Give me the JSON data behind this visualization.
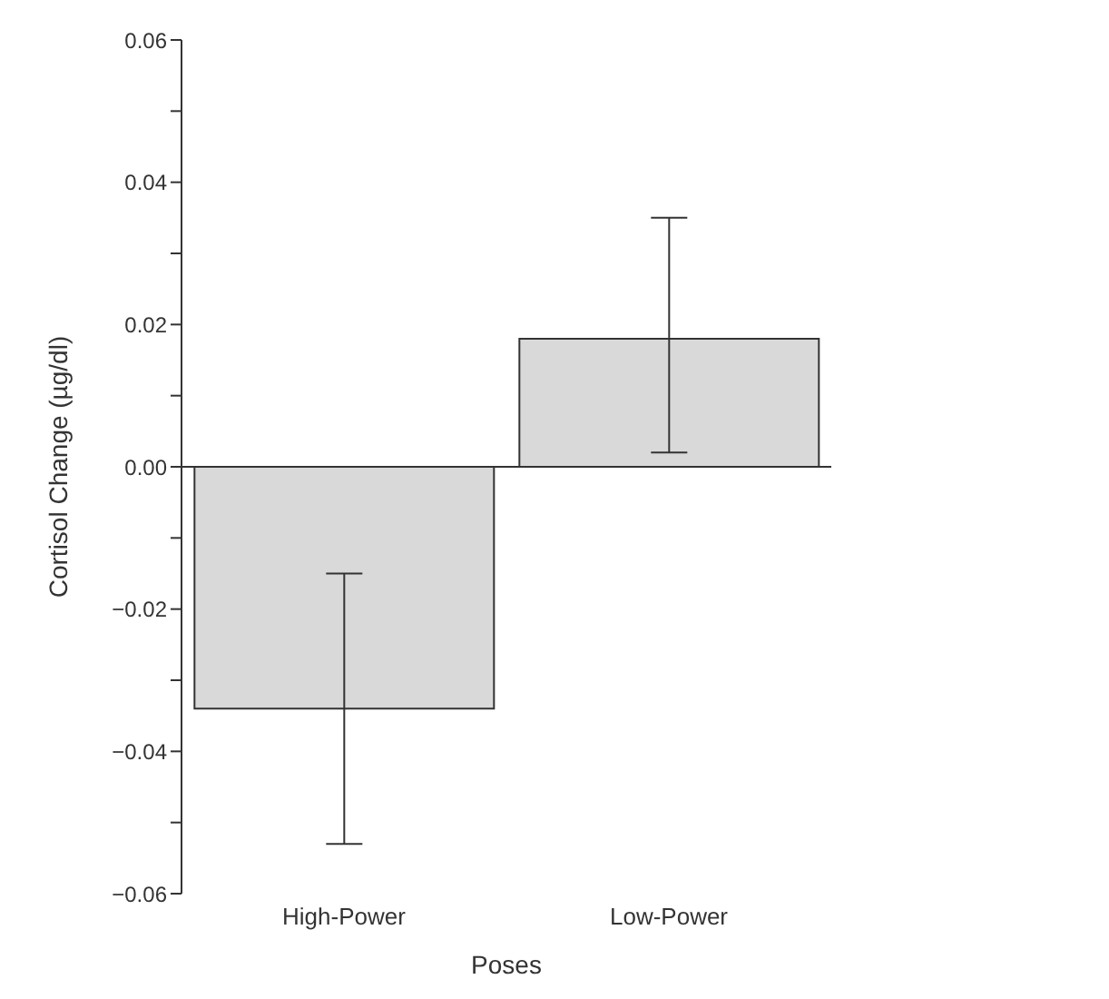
{
  "chart_data": {
    "type": "bar",
    "xlabel": "Poses",
    "ylabel": "Cortisol Change (µg/dl)",
    "categories": [
      "High-Power",
      "Low-Power"
    ],
    "values": [
      -0.034,
      0.018
    ],
    "color": "#d9d9d9",
    "errors": [
      [
        -0.053,
        -0.015
      ],
      [
        0.002,
        0.035
      ]
    ],
    "ylim": [
      -0.06,
      0.06
    ],
    "yticks": [
      {
        "value": -0.06,
        "label": "−0.06"
      },
      {
        "value": -0.05,
        "label": null
      },
      {
        "value": -0.04,
        "label": "−0.04"
      },
      {
        "value": -0.03,
        "label": null
      },
      {
        "value": -0.02,
        "label": "−0.02"
      },
      {
        "value": -0.01,
        "label": null
      },
      {
        "value": 0,
        "label": "0.00"
      },
      {
        "value": 0.01,
        "label": null
      },
      {
        "value": 0.02,
        "label": "0.02"
      },
      {
        "value": 0.03,
        "label": null
      },
      {
        "value": 0.04,
        "label": "0.04"
      },
      {
        "value": 0.05,
        "label": null
      },
      {
        "value": 0.06,
        "label": "0.06"
      }
    ],
    "ref_lines": [
      {
        "axis": "y",
        "value": 0,
        "color": "#333333"
      }
    ],
    "legend": false
  }
}
